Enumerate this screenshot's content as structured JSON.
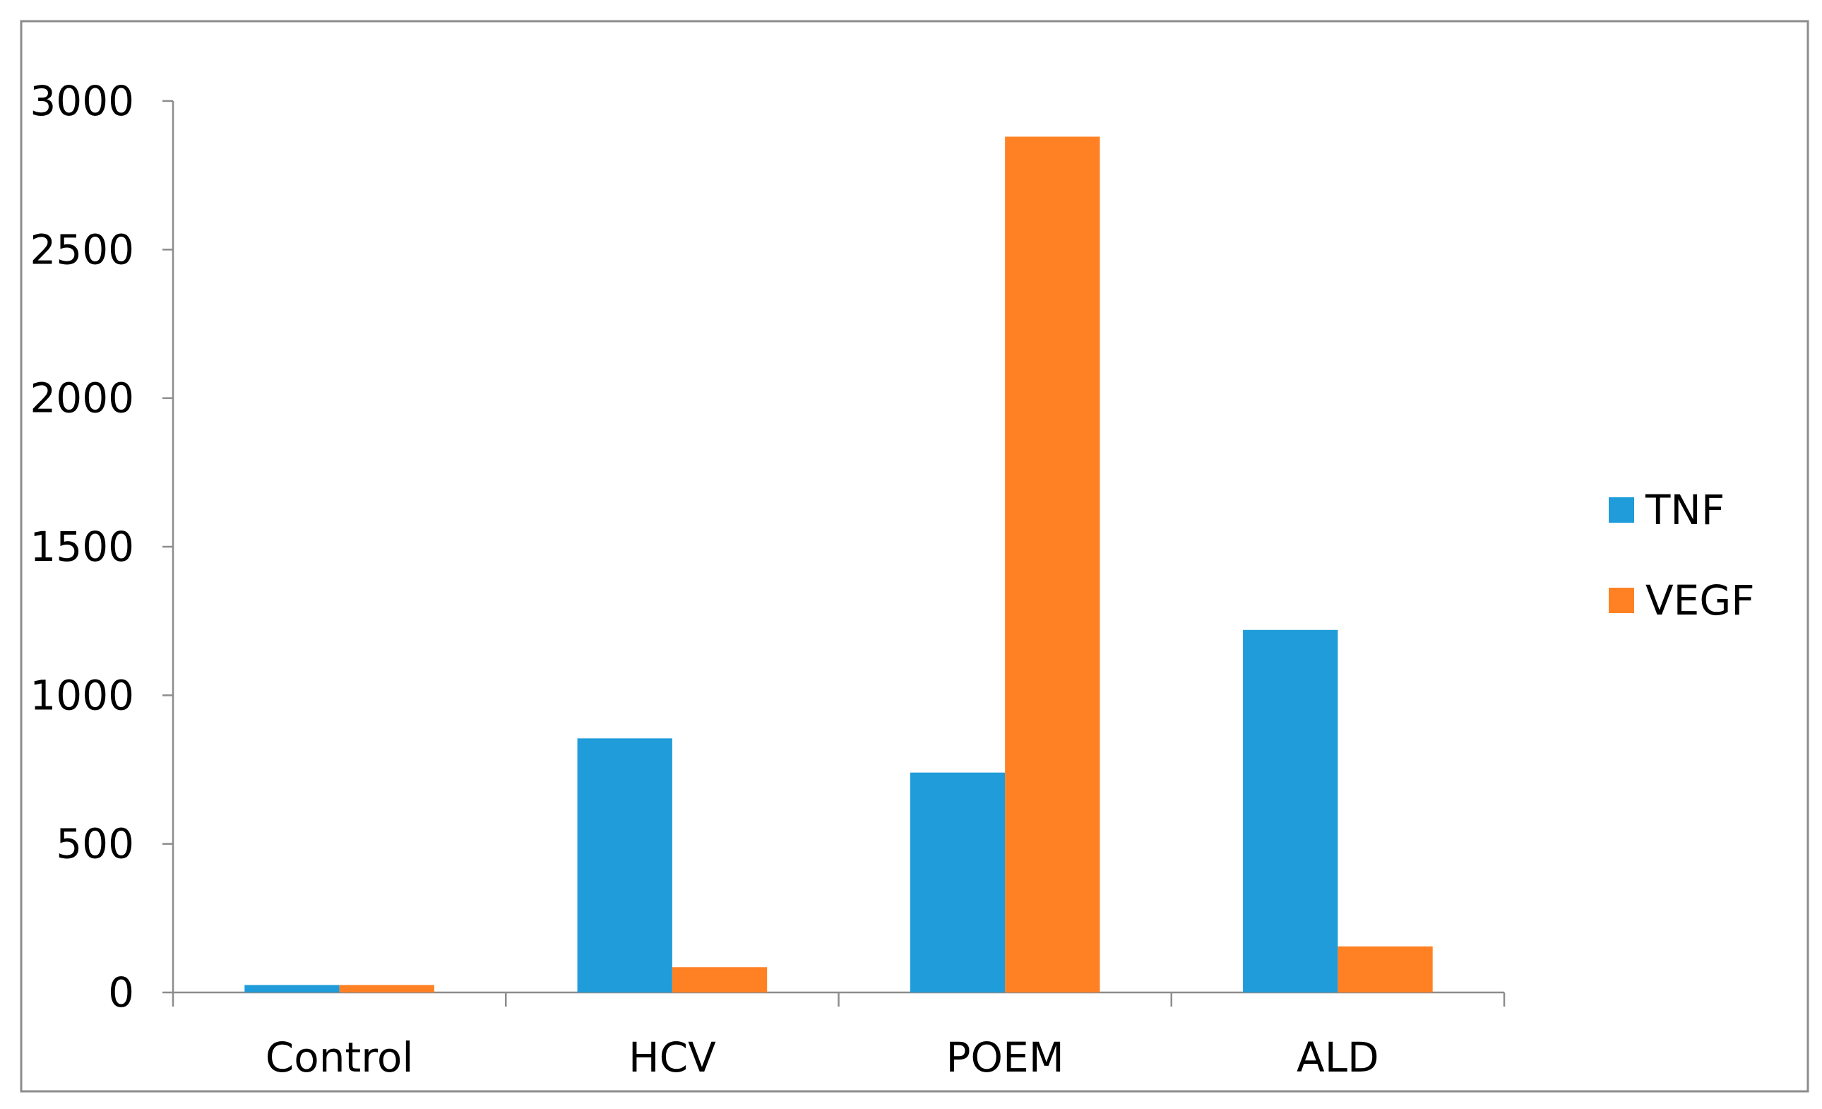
{
  "chart_data": {
    "type": "bar",
    "title": "",
    "xlabel": "",
    "ylabel": "",
    "categories": [
      "Control",
      "HCV",
      "POEM",
      "ALD"
    ],
    "series": [
      {
        "name": "TNF",
        "color": "#1F9CD9",
        "values": [
          25,
          855,
          740,
          1220
        ]
      },
      {
        "name": "VEGF",
        "color": "#FF8123",
        "values": [
          25,
          85,
          2880,
          155
        ]
      }
    ],
    "ylim": [
      0,
      3000
    ],
    "yticks": [
      0,
      500,
      1000,
      1500,
      2000,
      2500,
      3000
    ],
    "grid": false,
    "legend_position": "right"
  }
}
